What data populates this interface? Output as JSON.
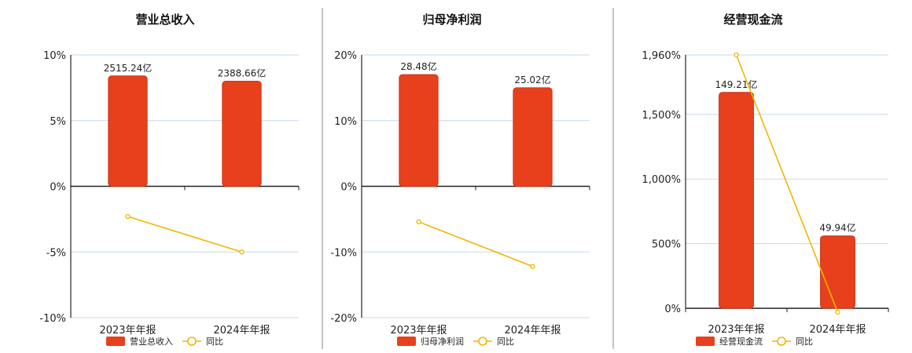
{
  "colors": {
    "bar": "#e8401c",
    "bar_stroke": "#c8341a",
    "line": "#f2b600",
    "grid": "#c8d8ea",
    "axis": "#222222",
    "divider": "#888888"
  },
  "chart_data": [
    {
      "type": "bar",
      "title": "营业总收入",
      "categories": [
        "2023年年报",
        "2024年年报"
      ],
      "series": [
        {
          "name": "营业总收入",
          "type": "bar",
          "values": [
            8.4,
            8.0
          ],
          "labels": [
            "2515.24亿",
            "2388.66亿"
          ]
        },
        {
          "name": "同比",
          "type": "line",
          "values": [
            -2.3,
            -5.0
          ]
        }
      ],
      "ylim": [
        -10,
        10
      ],
      "yticks": [
        10,
        5,
        0,
        -5,
        -10
      ],
      "ytick_labels": [
        "10%",
        "5%",
        "0%",
        "-5%",
        "-10%"
      ],
      "grid": true,
      "legend": "bottom"
    },
    {
      "type": "bar",
      "title": "归母净利润",
      "categories": [
        "2023年年报",
        "2024年年报"
      ],
      "series": [
        {
          "name": "归母净利润",
          "type": "bar",
          "values": [
            17.0,
            15.0
          ],
          "labels": [
            "28.48亿",
            "25.02亿"
          ]
        },
        {
          "name": "同比",
          "type": "line",
          "values": [
            -5.4,
            -12.2
          ]
        }
      ],
      "ylim": [
        -20,
        20
      ],
      "yticks": [
        20,
        10,
        0,
        -10,
        -20
      ],
      "ytick_labels": [
        "20%",
        "10%",
        "0%",
        "-10%",
        "-20%"
      ],
      "grid": true,
      "legend": "bottom"
    },
    {
      "type": "bar",
      "title": "经营现金流",
      "categories": [
        "2023年年报",
        "2024年年报"
      ],
      "series": [
        {
          "name": "经营现金流",
          "type": "bar",
          "values": [
            1670,
            560
          ],
          "labels": [
            "149.21亿",
            "49.94亿"
          ]
        },
        {
          "name": "同比",
          "type": "line",
          "values": [
            1960,
            -30
          ]
        }
      ],
      "ylim": [
        0,
        1960
      ],
      "yticks": [
        1960,
        1500,
        1000,
        500,
        0
      ],
      "ytick_labels": [
        "1,960%",
        "1,500%",
        "1,000%",
        "500%",
        "0%"
      ],
      "grid": true,
      "legend": "bottom"
    }
  ]
}
